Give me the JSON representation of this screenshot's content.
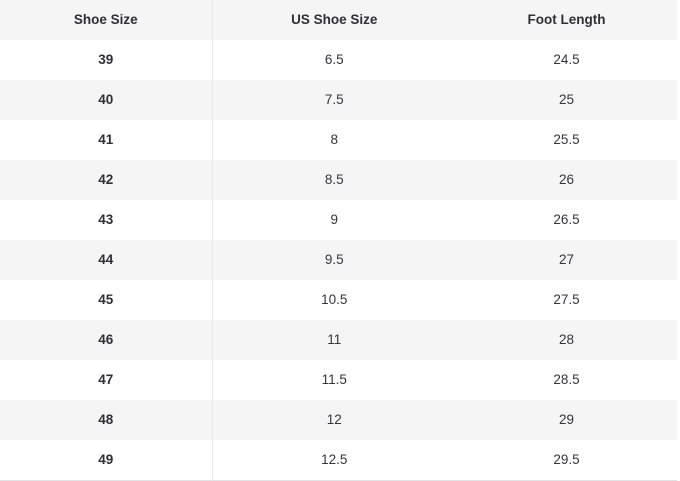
{
  "chart_data": {
    "type": "table",
    "columns": [
      "Shoe Size",
      "US Shoe Size",
      "Foot Length"
    ],
    "rows": [
      [
        "39",
        "6.5",
        "24.5"
      ],
      [
        "40",
        "7.5",
        "25"
      ],
      [
        "41",
        "8",
        "25.5"
      ],
      [
        "42",
        "8.5",
        "26"
      ],
      [
        "43",
        "9",
        "26.5"
      ],
      [
        "44",
        "9.5",
        "27"
      ],
      [
        "45",
        "10.5",
        "27.5"
      ],
      [
        "46",
        "11",
        "28"
      ],
      [
        "47",
        "11.5",
        "28.5"
      ],
      [
        "48",
        "12",
        "29"
      ],
      [
        "49",
        "12.5",
        "29.5"
      ]
    ],
    "layout": {
      "striped": true,
      "stripe_pattern": "header and every second data row shaded",
      "column_align": "center",
      "bold_columns": [
        "Shoe Size"
      ]
    }
  },
  "colors": {
    "stripe_bg": "#f5f5f6",
    "row_bg": "#ffffff",
    "header_text": "#2f2f39",
    "cell_text": "#35353f",
    "column_divider": "#e7e7ea",
    "bottom_border": "#e3e3e6"
  }
}
